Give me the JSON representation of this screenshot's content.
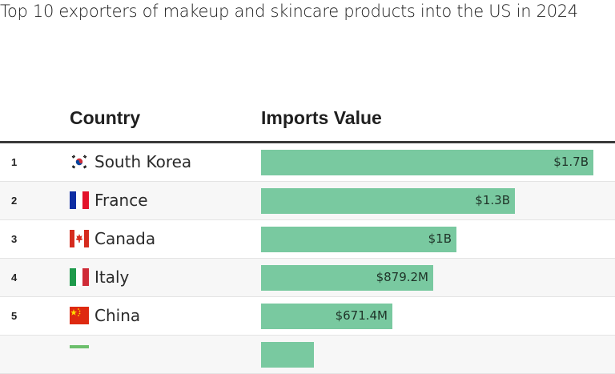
{
  "title": "Top 10 exporters of makeup and skincare products into the US in 2024",
  "table": {
    "col_country": "Country",
    "col_value": "Imports Value"
  },
  "colors": {
    "bar": "#79c9a0",
    "header_rule": "#3a3a3a"
  },
  "chart_data": {
    "type": "bar",
    "title": "Top 10 exporters of makeup and skincare products into the US in 2024",
    "xlabel": "Country",
    "ylabel": "Imports Value",
    "categories": [
      "South Korea",
      "France",
      "Canada",
      "Italy",
      "China",
      ""
    ],
    "ranks": [
      "1",
      "2",
      "3",
      "4",
      "5",
      ""
    ],
    "values": [
      1.7,
      1.3,
      1.0,
      0.8792,
      0.6714,
      0.27
    ],
    "labels": [
      "$1.7B",
      "$1.3B",
      "$1B",
      "$879.2M",
      "$671.4M",
      ""
    ],
    "unit": "USD billions",
    "flags": [
      "south-korea-flag-icon",
      "france-flag-icon",
      "canada-flag-icon",
      "italy-flag-icon",
      "china-flag-icon",
      "flag-icon"
    ]
  }
}
